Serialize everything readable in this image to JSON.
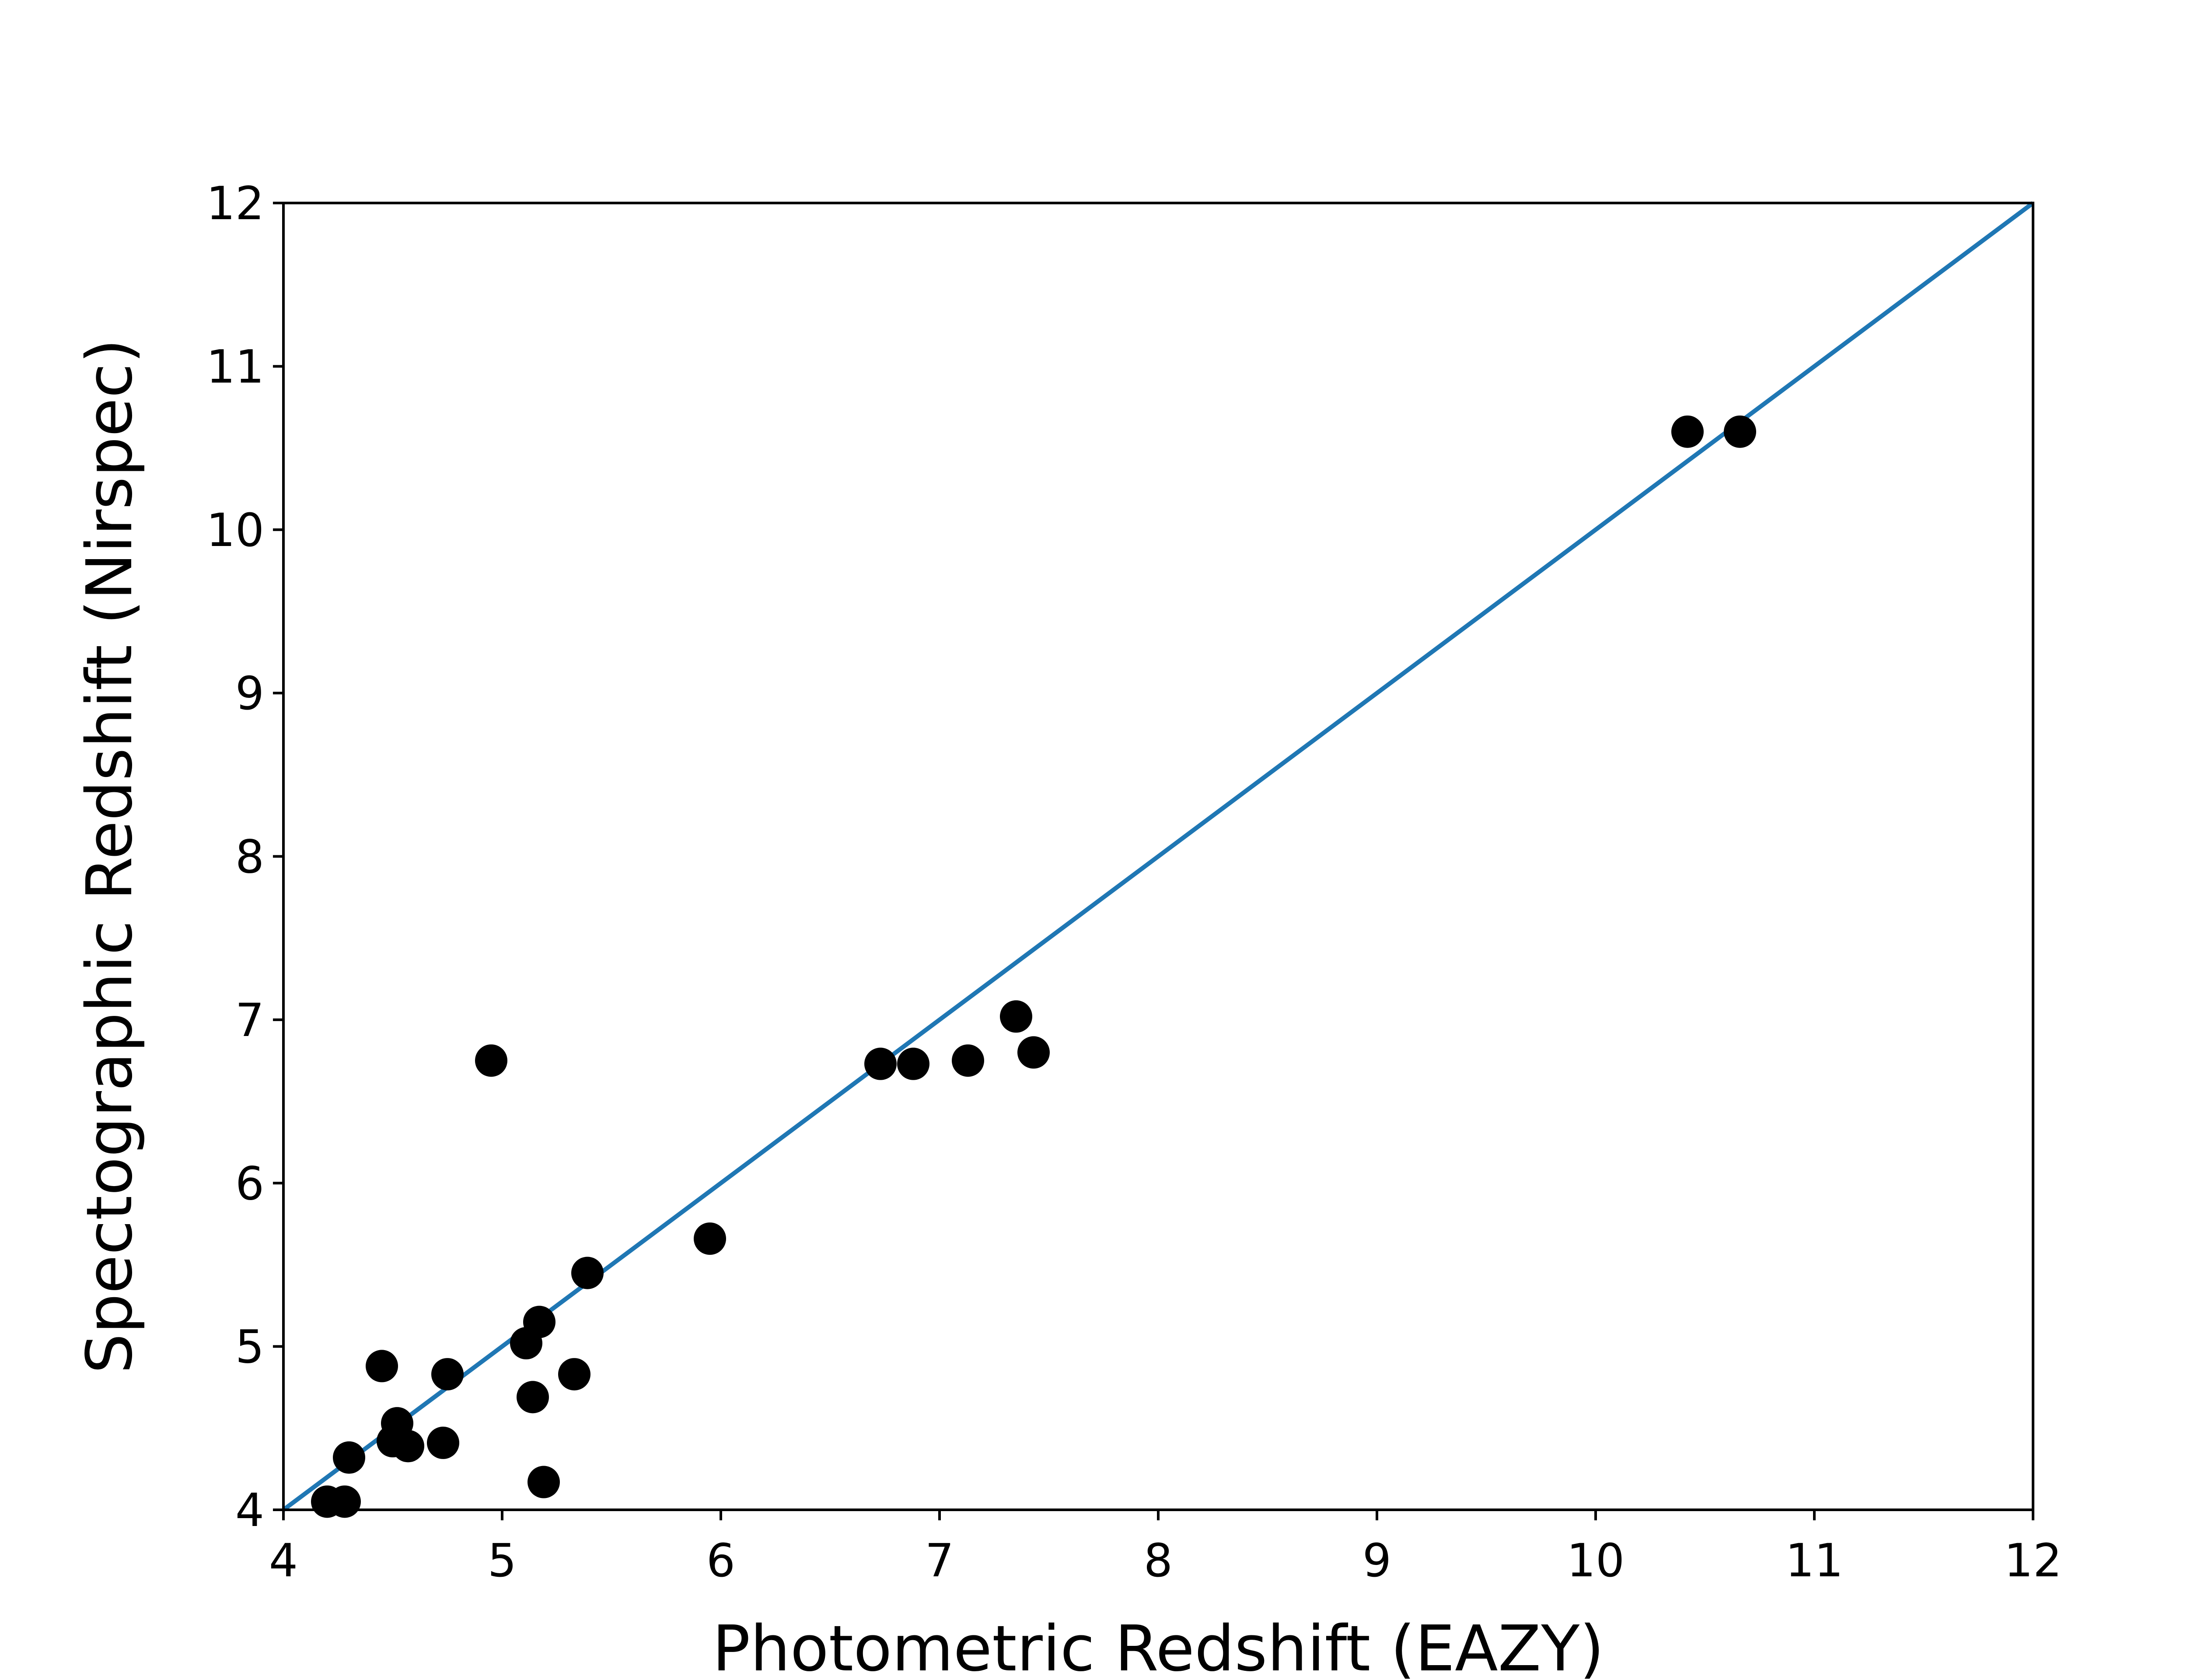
{
  "chart_data": {
    "type": "scatter",
    "title": "",
    "xlabel": "Photometric Redshift (EAZY)",
    "ylabel": "Spectographic Redshift (Nirspec)",
    "xlim": [
      4,
      12
    ],
    "ylim": [
      4,
      12
    ],
    "xticks": [
      "4",
      "5",
      "6",
      "7",
      "8",
      "9",
      "10",
      "11",
      "12"
    ],
    "yticks": [
      "4",
      "5",
      "6",
      "7",
      "8",
      "9",
      "10",
      "11",
      "12"
    ],
    "grid": false,
    "line_color": "#1f77b4",
    "point_color": "#000000",
    "series": [
      {
        "type": "scatter",
        "points": [
          [
            4.2,
            4.05
          ],
          [
            4.28,
            4.05
          ],
          [
            4.3,
            4.32
          ],
          [
            4.45,
            4.88
          ],
          [
            4.5,
            4.42
          ],
          [
            4.52,
            4.53
          ],
          [
            4.57,
            4.39
          ],
          [
            4.73,
            4.41
          ],
          [
            4.75,
            4.83
          ],
          [
            4.95,
            6.75
          ],
          [
            5.11,
            5.02
          ],
          [
            5.14,
            4.69
          ],
          [
            5.17,
            5.15
          ],
          [
            5.19,
            4.17
          ],
          [
            5.33,
            4.83
          ],
          [
            5.39,
            5.45
          ],
          [
            5.95,
            5.66
          ],
          [
            6.73,
            6.73
          ],
          [
            6.88,
            6.73
          ],
          [
            7.13,
            6.75
          ],
          [
            7.35,
            7.02
          ],
          [
            7.43,
            6.8
          ],
          [
            10.42,
            10.6
          ],
          [
            10.66,
            10.6
          ]
        ]
      },
      {
        "type": "line",
        "points": [
          [
            4,
            4
          ],
          [
            12,
            12
          ]
        ]
      }
    ]
  }
}
